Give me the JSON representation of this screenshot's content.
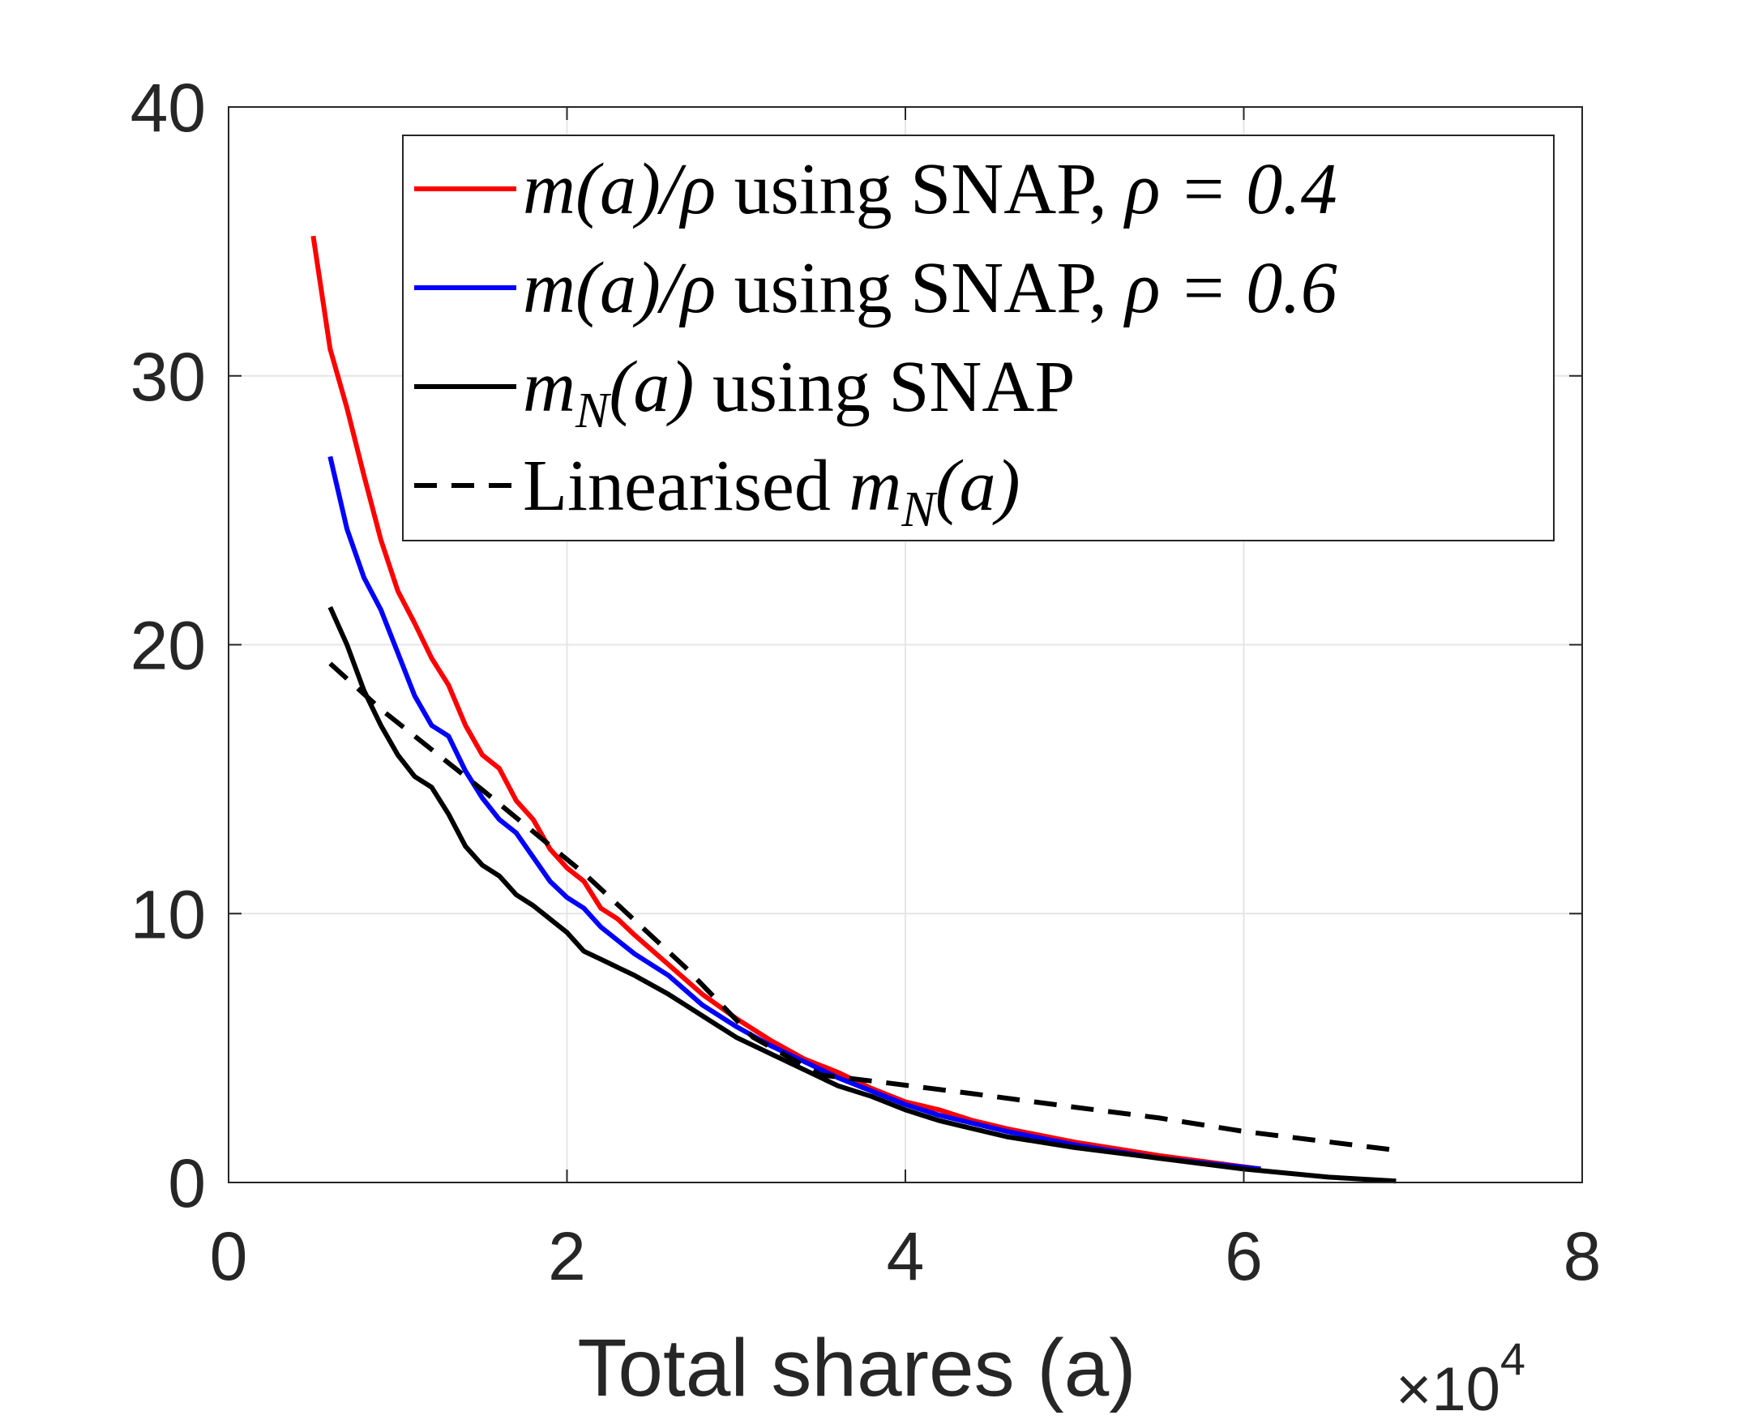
{
  "chart_data": {
    "type": "line",
    "title": "",
    "xlabel": "Total shares (a)",
    "ylabel": "",
    "x_exponent_base": "×10",
    "x_exponent_power": "4",
    "xlim": [
      0,
      8
    ],
    "ylim": [
      0,
      40
    ],
    "x_ticks": [
      0,
      2,
      4,
      6,
      8
    ],
    "x_tick_labels": [
      "0",
      "2",
      "4",
      "6",
      "8"
    ],
    "y_ticks": [
      0,
      10,
      20,
      30,
      40
    ],
    "y_tick_labels": [
      "0",
      "10",
      "20",
      "30",
      "40"
    ],
    "grid": true,
    "legend_position": "top-right",
    "series": [
      {
        "name": "m(a)/ρ using SNAP, ρ = 0.4",
        "legend_parts": [
          [
            "m(a)/ρ",
            true
          ],
          [
            " using SNAP, ",
            false
          ],
          [
            "ρ = 0.4",
            true
          ]
        ],
        "color": "#ff0000",
        "dash": "solid",
        "x": [
          0.5,
          0.6,
          0.7,
          0.8,
          0.9,
          1.0,
          1.1,
          1.2,
          1.3,
          1.4,
          1.5,
          1.6,
          1.7,
          1.8,
          1.9,
          2.0,
          2.1,
          2.2,
          2.3,
          2.4,
          2.6,
          2.8,
          3.0,
          3.2,
          3.4,
          3.6,
          3.8,
          4.0,
          4.2,
          4.4,
          4.6,
          5.0,
          5.5,
          6.1
        ],
        "y": [
          35.2,
          31.0,
          28.8,
          26.3,
          23.9,
          22.0,
          20.8,
          19.5,
          18.5,
          17.0,
          15.9,
          15.4,
          14.2,
          13.5,
          12.4,
          11.7,
          11.2,
          10.2,
          9.8,
          9.2,
          8.1,
          7.0,
          6.1,
          5.3,
          4.6,
          4.1,
          3.5,
          3.0,
          2.7,
          2.3,
          2.0,
          1.5,
          1.0,
          0.5
        ]
      },
      {
        "name": "m(a)/ρ using SNAP, ρ = 0.6",
        "legend_parts": [
          [
            "m(a)/ρ",
            true
          ],
          [
            " using SNAP, ",
            false
          ],
          [
            "ρ = 0.6",
            true
          ]
        ],
        "color": "#0000ff",
        "dash": "solid",
        "x": [
          0.6,
          0.7,
          0.8,
          0.9,
          1.0,
          1.1,
          1.2,
          1.3,
          1.4,
          1.5,
          1.6,
          1.7,
          1.8,
          1.9,
          2.0,
          2.1,
          2.2,
          2.4,
          2.6,
          2.8,
          3.0,
          3.2,
          3.4,
          3.6,
          3.8,
          4.0,
          4.2,
          4.4,
          4.6,
          5.0,
          5.5,
          6.1
        ],
        "y": [
          27.0,
          24.3,
          22.5,
          21.3,
          19.7,
          18.1,
          17.0,
          16.6,
          15.3,
          14.3,
          13.5,
          13.0,
          12.1,
          11.2,
          10.6,
          10.2,
          9.5,
          8.5,
          7.7,
          6.6,
          5.8,
          5.1,
          4.5,
          3.9,
          3.4,
          2.9,
          2.5,
          2.2,
          1.9,
          1.4,
          0.9,
          0.5
        ]
      },
      {
        "name": "m_N(a) using SNAP",
        "legend_parts": [
          [
            "m",
            true
          ],
          [
            "N",
            true,
            "sub"
          ],
          [
            "(a)",
            true
          ],
          [
            " using SNAP",
            false
          ]
        ],
        "color": "#000000",
        "dash": "solid",
        "x": [
          0.6,
          0.7,
          0.8,
          0.9,
          1.0,
          1.1,
          1.2,
          1.3,
          1.4,
          1.5,
          1.6,
          1.7,
          1.8,
          1.9,
          2.0,
          2.1,
          2.2,
          2.4,
          2.6,
          2.7,
          2.8,
          3.0,
          3.1,
          3.2,
          3.4,
          3.6,
          3.8,
          4.0,
          4.2,
          4.4,
          4.6,
          5.0,
          5.5,
          6.0,
          6.5,
          6.9
        ],
        "y": [
          21.4,
          20.0,
          18.3,
          17.0,
          15.9,
          15.1,
          14.7,
          13.7,
          12.5,
          11.8,
          11.4,
          10.7,
          10.3,
          9.8,
          9.3,
          8.6,
          8.3,
          7.7,
          7.0,
          6.6,
          6.2,
          5.4,
          5.1,
          4.8,
          4.2,
          3.6,
          3.2,
          2.7,
          2.3,
          2.0,
          1.7,
          1.3,
          0.9,
          0.5,
          0.2,
          0.05
        ]
      },
      {
        "name": "Linearised m_N(a)",
        "legend_parts": [
          [
            "Linearised ",
            false
          ],
          [
            "m",
            true
          ],
          [
            "N",
            true,
            "sub"
          ],
          [
            "(a)",
            true
          ]
        ],
        "color": "#000000",
        "dash": "dashed",
        "x": [
          0.6,
          0.9,
          1.5,
          2.1,
          2.7,
          3.1,
          3.5,
          3.9,
          4.4,
          5.0,
          5.5,
          6.0,
          6.9
        ],
        "y": [
          19.3,
          17.6,
          14.6,
          11.5,
          8.0,
          5.4,
          4.0,
          3.7,
          3.3,
          2.8,
          2.4,
          1.9,
          1.2
        ]
      }
    ]
  }
}
